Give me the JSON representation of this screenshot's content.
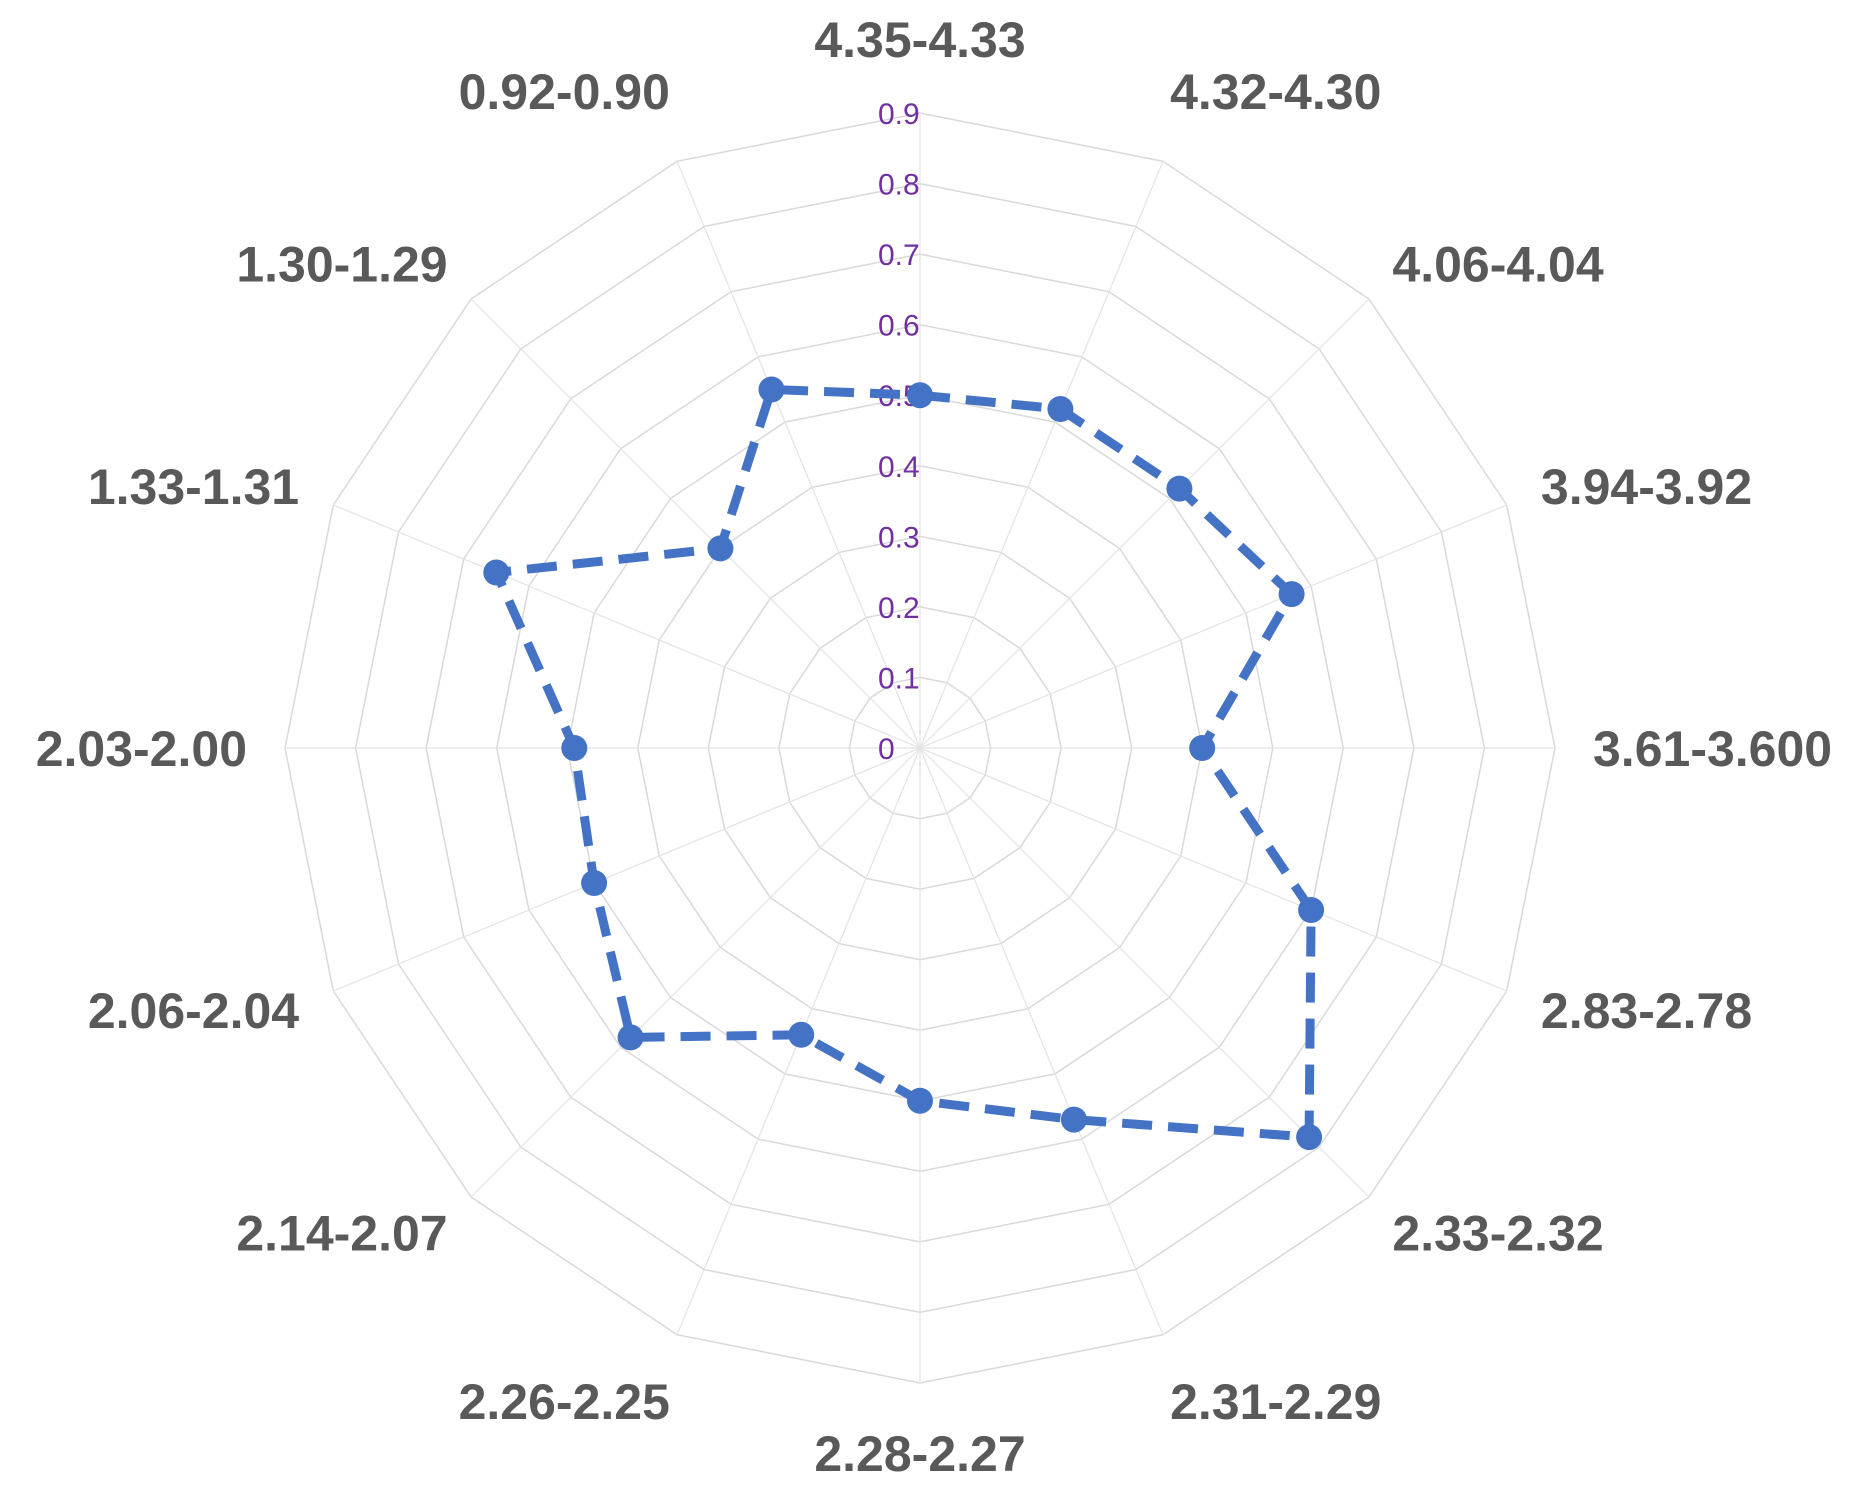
{
  "chart_data": {
    "type": "radar",
    "categories": [
      "4.35-4.33",
      "4.32-4.30",
      "4.06-4.04",
      "3.94-3.92",
      "3.61-3.600",
      "2.83-2.78",
      "2.33-2.32",
      "2.31-2.29",
      "2.28-2.27",
      "2.26-2.25",
      "2.14-2.07",
      "2.06-2.04",
      "2.03-2.00",
      "1.33-1.31",
      "1.30-1.29",
      "0.92-0.90"
    ],
    "series": [
      {
        "values": [
          0.5,
          0.52,
          0.52,
          0.57,
          0.4,
          0.6,
          0.78,
          0.57,
          0.5,
          0.44,
          0.58,
          0.5,
          0.49,
          0.65,
          0.4,
          0.55
        ]
      }
    ],
    "ticks": [
      "0",
      "0.1",
      "0.2",
      "0.3",
      "0.4",
      "0.5",
      "0.6",
      "0.7",
      "0.8",
      "0.9"
    ],
    "rmax": 0.9,
    "line_style": "dashed",
    "marker": "circle",
    "grid": true,
    "colors": {
      "series": "#4472c4",
      "tick": "#7030a0",
      "label": "#595959",
      "grid": "#d9d9d9"
    }
  }
}
